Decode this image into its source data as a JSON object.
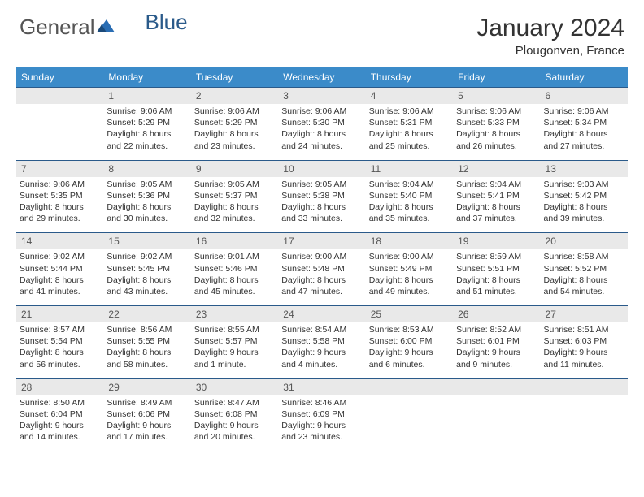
{
  "brand": {
    "part1": "General",
    "part2": "Blue"
  },
  "title": "January 2024",
  "location": "Plougonven, France",
  "colors": {
    "header_bg": "#3b8bc9",
    "rule": "#2a5a8a",
    "daynum_bg": "#e9e9e9",
    "text": "#333333"
  },
  "day_headers": [
    "Sunday",
    "Monday",
    "Tuesday",
    "Wednesday",
    "Thursday",
    "Friday",
    "Saturday"
  ],
  "weeks": [
    [
      {
        "num": "",
        "sunrise": "",
        "sunset": "",
        "daylight1": "",
        "daylight2": ""
      },
      {
        "num": "1",
        "sunrise": "Sunrise: 9:06 AM",
        "sunset": "Sunset: 5:29 PM",
        "daylight1": "Daylight: 8 hours",
        "daylight2": "and 22 minutes."
      },
      {
        "num": "2",
        "sunrise": "Sunrise: 9:06 AM",
        "sunset": "Sunset: 5:29 PM",
        "daylight1": "Daylight: 8 hours",
        "daylight2": "and 23 minutes."
      },
      {
        "num": "3",
        "sunrise": "Sunrise: 9:06 AM",
        "sunset": "Sunset: 5:30 PM",
        "daylight1": "Daylight: 8 hours",
        "daylight2": "and 24 minutes."
      },
      {
        "num": "4",
        "sunrise": "Sunrise: 9:06 AM",
        "sunset": "Sunset: 5:31 PM",
        "daylight1": "Daylight: 8 hours",
        "daylight2": "and 25 minutes."
      },
      {
        "num": "5",
        "sunrise": "Sunrise: 9:06 AM",
        "sunset": "Sunset: 5:33 PM",
        "daylight1": "Daylight: 8 hours",
        "daylight2": "and 26 minutes."
      },
      {
        "num": "6",
        "sunrise": "Sunrise: 9:06 AM",
        "sunset": "Sunset: 5:34 PM",
        "daylight1": "Daylight: 8 hours",
        "daylight2": "and 27 minutes."
      }
    ],
    [
      {
        "num": "7",
        "sunrise": "Sunrise: 9:06 AM",
        "sunset": "Sunset: 5:35 PM",
        "daylight1": "Daylight: 8 hours",
        "daylight2": "and 29 minutes."
      },
      {
        "num": "8",
        "sunrise": "Sunrise: 9:05 AM",
        "sunset": "Sunset: 5:36 PM",
        "daylight1": "Daylight: 8 hours",
        "daylight2": "and 30 minutes."
      },
      {
        "num": "9",
        "sunrise": "Sunrise: 9:05 AM",
        "sunset": "Sunset: 5:37 PM",
        "daylight1": "Daylight: 8 hours",
        "daylight2": "and 32 minutes."
      },
      {
        "num": "10",
        "sunrise": "Sunrise: 9:05 AM",
        "sunset": "Sunset: 5:38 PM",
        "daylight1": "Daylight: 8 hours",
        "daylight2": "and 33 minutes."
      },
      {
        "num": "11",
        "sunrise": "Sunrise: 9:04 AM",
        "sunset": "Sunset: 5:40 PM",
        "daylight1": "Daylight: 8 hours",
        "daylight2": "and 35 minutes."
      },
      {
        "num": "12",
        "sunrise": "Sunrise: 9:04 AM",
        "sunset": "Sunset: 5:41 PM",
        "daylight1": "Daylight: 8 hours",
        "daylight2": "and 37 minutes."
      },
      {
        "num": "13",
        "sunrise": "Sunrise: 9:03 AM",
        "sunset": "Sunset: 5:42 PM",
        "daylight1": "Daylight: 8 hours",
        "daylight2": "and 39 minutes."
      }
    ],
    [
      {
        "num": "14",
        "sunrise": "Sunrise: 9:02 AM",
        "sunset": "Sunset: 5:44 PM",
        "daylight1": "Daylight: 8 hours",
        "daylight2": "and 41 minutes."
      },
      {
        "num": "15",
        "sunrise": "Sunrise: 9:02 AM",
        "sunset": "Sunset: 5:45 PM",
        "daylight1": "Daylight: 8 hours",
        "daylight2": "and 43 minutes."
      },
      {
        "num": "16",
        "sunrise": "Sunrise: 9:01 AM",
        "sunset": "Sunset: 5:46 PM",
        "daylight1": "Daylight: 8 hours",
        "daylight2": "and 45 minutes."
      },
      {
        "num": "17",
        "sunrise": "Sunrise: 9:00 AM",
        "sunset": "Sunset: 5:48 PM",
        "daylight1": "Daylight: 8 hours",
        "daylight2": "and 47 minutes."
      },
      {
        "num": "18",
        "sunrise": "Sunrise: 9:00 AM",
        "sunset": "Sunset: 5:49 PM",
        "daylight1": "Daylight: 8 hours",
        "daylight2": "and 49 minutes."
      },
      {
        "num": "19",
        "sunrise": "Sunrise: 8:59 AM",
        "sunset": "Sunset: 5:51 PM",
        "daylight1": "Daylight: 8 hours",
        "daylight2": "and 51 minutes."
      },
      {
        "num": "20",
        "sunrise": "Sunrise: 8:58 AM",
        "sunset": "Sunset: 5:52 PM",
        "daylight1": "Daylight: 8 hours",
        "daylight2": "and 54 minutes."
      }
    ],
    [
      {
        "num": "21",
        "sunrise": "Sunrise: 8:57 AM",
        "sunset": "Sunset: 5:54 PM",
        "daylight1": "Daylight: 8 hours",
        "daylight2": "and 56 minutes."
      },
      {
        "num": "22",
        "sunrise": "Sunrise: 8:56 AM",
        "sunset": "Sunset: 5:55 PM",
        "daylight1": "Daylight: 8 hours",
        "daylight2": "and 58 minutes."
      },
      {
        "num": "23",
        "sunrise": "Sunrise: 8:55 AM",
        "sunset": "Sunset: 5:57 PM",
        "daylight1": "Daylight: 9 hours",
        "daylight2": "and 1 minute."
      },
      {
        "num": "24",
        "sunrise": "Sunrise: 8:54 AM",
        "sunset": "Sunset: 5:58 PM",
        "daylight1": "Daylight: 9 hours",
        "daylight2": "and 4 minutes."
      },
      {
        "num": "25",
        "sunrise": "Sunrise: 8:53 AM",
        "sunset": "Sunset: 6:00 PM",
        "daylight1": "Daylight: 9 hours",
        "daylight2": "and 6 minutes."
      },
      {
        "num": "26",
        "sunrise": "Sunrise: 8:52 AM",
        "sunset": "Sunset: 6:01 PM",
        "daylight1": "Daylight: 9 hours",
        "daylight2": "and 9 minutes."
      },
      {
        "num": "27",
        "sunrise": "Sunrise: 8:51 AM",
        "sunset": "Sunset: 6:03 PM",
        "daylight1": "Daylight: 9 hours",
        "daylight2": "and 11 minutes."
      }
    ],
    [
      {
        "num": "28",
        "sunrise": "Sunrise: 8:50 AM",
        "sunset": "Sunset: 6:04 PM",
        "daylight1": "Daylight: 9 hours",
        "daylight2": "and 14 minutes."
      },
      {
        "num": "29",
        "sunrise": "Sunrise: 8:49 AM",
        "sunset": "Sunset: 6:06 PM",
        "daylight1": "Daylight: 9 hours",
        "daylight2": "and 17 minutes."
      },
      {
        "num": "30",
        "sunrise": "Sunrise: 8:47 AM",
        "sunset": "Sunset: 6:08 PM",
        "daylight1": "Daylight: 9 hours",
        "daylight2": "and 20 minutes."
      },
      {
        "num": "31",
        "sunrise": "Sunrise: 8:46 AM",
        "sunset": "Sunset: 6:09 PM",
        "daylight1": "Daylight: 9 hours",
        "daylight2": "and 23 minutes."
      },
      {
        "num": "",
        "sunrise": "",
        "sunset": "",
        "daylight1": "",
        "daylight2": ""
      },
      {
        "num": "",
        "sunrise": "",
        "sunset": "",
        "daylight1": "",
        "daylight2": ""
      },
      {
        "num": "",
        "sunrise": "",
        "sunset": "",
        "daylight1": "",
        "daylight2": ""
      }
    ]
  ]
}
